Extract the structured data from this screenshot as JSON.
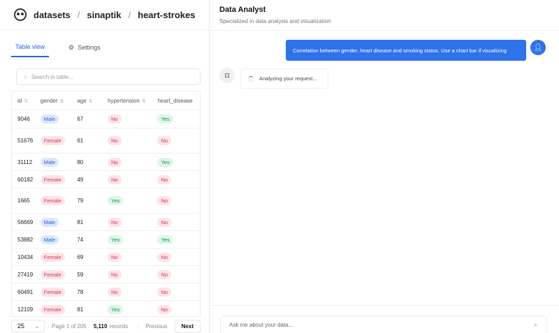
{
  "breadcrumb": [
    "datasets",
    "sinaptik",
    "heart-strokes"
  ],
  "tabs": {
    "table_view": "Table view",
    "settings": "Settings"
  },
  "search": {
    "placeholder": "Search in table..."
  },
  "table": {
    "columns": [
      "id",
      "gender",
      "age",
      "hypertension",
      "heart_disease"
    ],
    "rows": [
      [
        "9046",
        "Male",
        "67",
        "No",
        "Yes"
      ],
      [
        "51676",
        "Female",
        "61",
        "No",
        "No"
      ],
      [
        "31112",
        "Male",
        "80",
        "No",
        "Yes"
      ],
      [
        "60182",
        "Female",
        "49",
        "No",
        "No"
      ],
      [
        "1665",
        "Female",
        "79",
        "Yes",
        "No"
      ],
      [
        "56669",
        "Male",
        "81",
        "No",
        "No"
      ],
      [
        "53882",
        "Male",
        "74",
        "Yes",
        "Yes"
      ],
      [
        "10434",
        "Female",
        "69",
        "No",
        "No"
      ],
      [
        "27419",
        "Female",
        "59",
        "No",
        "No"
      ],
      [
        "60491",
        "Female",
        "78",
        "No",
        "No"
      ],
      [
        "12109",
        "Female",
        "81",
        "Yes",
        "No"
      ]
    ]
  },
  "pager": {
    "page_size": "25",
    "page_info": "Page 1 of 205",
    "records_count": "5,110",
    "records_label": "records",
    "previous": "Previous",
    "next": "Next"
  },
  "chat": {
    "title": "Data Analyst",
    "subtitle": "Specialized in data analysis and visualization",
    "user_message": "Correlation between gender, heart disease and smoking status. Use a chart bar if visualizing",
    "status": "Analyzing your request...",
    "input_placeholder": "Ask me about your data..."
  },
  "colors": {
    "accent": "#2f72e9",
    "tab_active": "#2563eb"
  }
}
